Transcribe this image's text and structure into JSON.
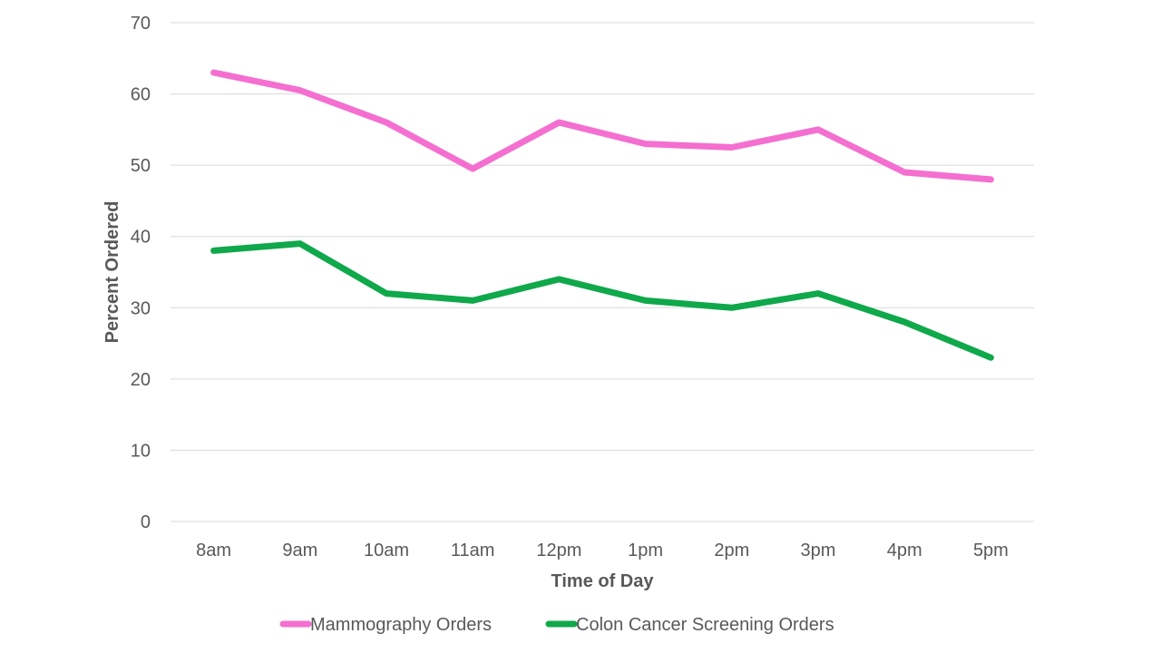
{
  "chart_data": {
    "type": "line",
    "title": "",
    "xlabel": "Time of Day",
    "ylabel": "Percent Ordered",
    "categories": [
      "8am",
      "9am",
      "10am",
      "11am",
      "12pm",
      "1pm",
      "2pm",
      "3pm",
      "4pm",
      "5pm"
    ],
    "ylim": [
      0,
      70
    ],
    "yticks": [
      0,
      10,
      20,
      30,
      40,
      50,
      60,
      70
    ],
    "grid": true,
    "legend_position": "bottom",
    "series": [
      {
        "name": "Mammography Orders",
        "color": "#f46fd0",
        "values": [
          63,
          60.5,
          56,
          49.5,
          56,
          53,
          52.5,
          55,
          49,
          48
        ]
      },
      {
        "name": "Colon Cancer Screening Orders",
        "color": "#0fa84a",
        "values": [
          38,
          39,
          32,
          31,
          34,
          31,
          30,
          32,
          28,
          23
        ]
      }
    ]
  }
}
